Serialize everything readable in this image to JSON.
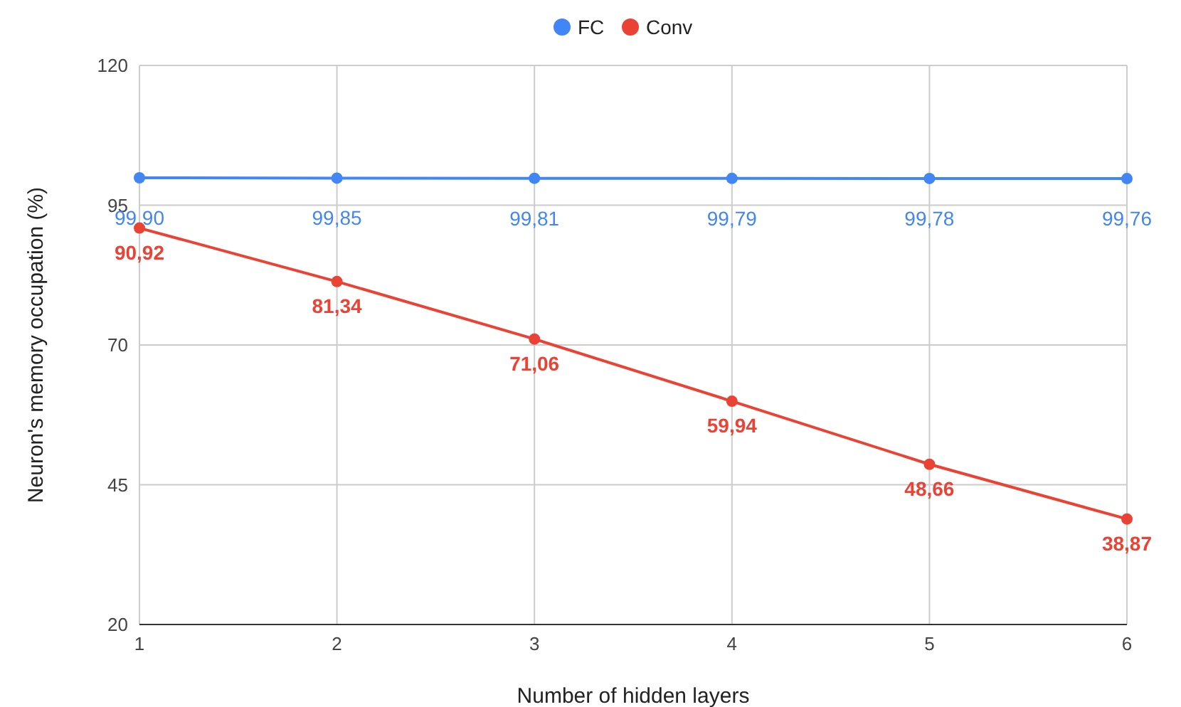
{
  "chart_data": {
    "type": "line",
    "xlabel": "Number of hidden layers",
    "ylabel": "Neuron's memory occupation (%)",
    "x": [
      1,
      2,
      3,
      4,
      5,
      6
    ],
    "xlim": [
      1,
      6
    ],
    "xticks": [
      1,
      2,
      3,
      4,
      5,
      6
    ],
    "ylim": [
      20,
      120
    ],
    "yticks": [
      20,
      45,
      70,
      95,
      120
    ],
    "grid": true,
    "legend": "top",
    "marker": "circle",
    "line_style": "solid",
    "series": [
      {
        "name": "FC",
        "color": "#4285f4",
        "values": [
          99.9,
          99.85,
          99.81,
          99.79,
          99.78,
          99.76
        ],
        "value_labels": [
          "99,90",
          "99,85",
          "99,81",
          "99,79",
          "99,78",
          "99,76"
        ]
      },
      {
        "name": "Conv",
        "color": "#ea4335",
        "values": [
          90.92,
          81.34,
          71.06,
          59.94,
          48.66,
          38.87
        ],
        "value_labels": [
          "90,92",
          "81,34",
          "71,06",
          "59,94",
          "48,66",
          "38,87"
        ]
      }
    ]
  }
}
